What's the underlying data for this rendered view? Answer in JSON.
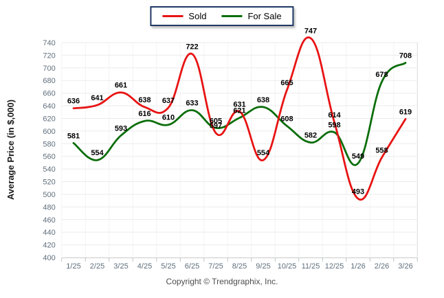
{
  "legend": {
    "items": [
      {
        "label": "Sold",
        "color": "#e81313"
      },
      {
        "label": "For Sale",
        "color": "#0b6e0b"
      }
    ]
  },
  "axis": {
    "y_title": "Average Price (in $,000)"
  },
  "footer": {
    "copyright": "Copyright © Trendgraphix, Inc."
  },
  "colors": {
    "sold": "#e81313",
    "for_sale": "#0b6e0b",
    "legend_border": "#1f3864"
  },
  "chart_data": {
    "type": "line",
    "title": "",
    "xlabel": "",
    "ylabel": "Average Price (in $,000)",
    "categories": [
      "1/25",
      "2/25",
      "3/25",
      "4/25",
      "5/25",
      "6/25",
      "7/25",
      "8/25",
      "9/25",
      "10/25",
      "11/25",
      "12/25",
      "1/26",
      "2/26",
      "3/26"
    ],
    "series": [
      {
        "name": "Sold",
        "color": "#e81313",
        "values": [
          636,
          641,
          661,
          638,
          637,
          722,
          597,
          631,
          554,
          665,
          747,
          614,
          493,
          558,
          619
        ]
      },
      {
        "name": "For Sale",
        "color": "#0b6e0b",
        "values": [
          581,
          554,
          593,
          616,
          610,
          633,
          605,
          621,
          638,
          608,
          582,
          598,
          549,
          678,
          708
        ]
      }
    ],
    "ylim": [
      400,
      740
    ],
    "ytick_step": 20,
    "grid": true,
    "smooth": true,
    "data_labels": true,
    "legend_position": "top-center"
  }
}
